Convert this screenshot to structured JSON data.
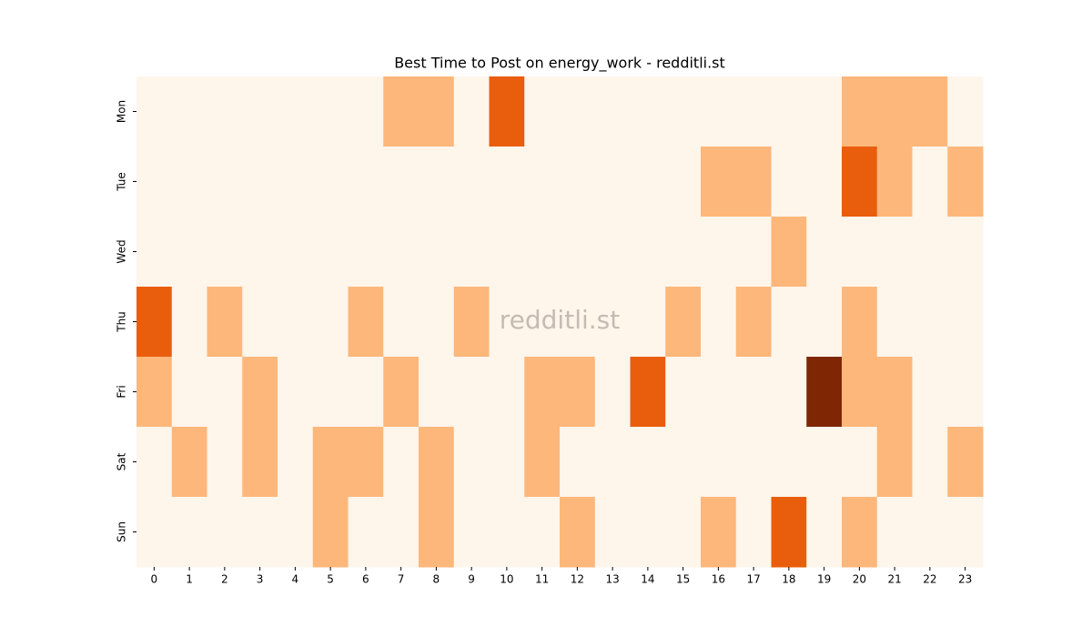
{
  "chart_data": {
    "type": "heatmap",
    "title": "Best Time to Post on energy_work - redditli.st",
    "watermark": "redditli.st",
    "x": [
      0,
      1,
      2,
      3,
      4,
      5,
      6,
      7,
      8,
      9,
      10,
      11,
      12,
      13,
      14,
      15,
      16,
      17,
      18,
      19,
      20,
      21,
      22,
      23
    ],
    "categories": [
      "Mon",
      "Tue",
      "Wed",
      "Thu",
      "Fri",
      "Sat",
      "Sun"
    ],
    "z": [
      [
        0,
        0,
        0,
        0,
        0,
        0,
        0,
        1,
        1,
        0,
        2,
        0,
        0,
        0,
        0,
        0,
        0,
        0,
        0,
        0,
        1,
        1,
        1,
        0
      ],
      [
        0,
        0,
        0,
        0,
        0,
        0,
        0,
        0,
        0,
        0,
        0,
        0,
        0,
        0,
        0,
        0,
        1,
        1,
        0,
        0,
        2,
        1,
        0,
        1
      ],
      [
        0,
        0,
        0,
        0,
        0,
        0,
        0,
        0,
        0,
        0,
        0,
        0,
        0,
        0,
        0,
        0,
        0,
        0,
        1,
        0,
        0,
        0,
        0,
        0
      ],
      [
        2,
        0,
        1,
        0,
        0,
        0,
        1,
        0,
        0,
        1,
        0,
        0,
        0,
        0,
        0,
        1,
        0,
        1,
        0,
        0,
        1,
        0,
        0,
        0
      ],
      [
        1,
        0,
        0,
        1,
        0,
        0,
        0,
        1,
        0,
        0,
        0,
        1,
        1,
        0,
        2,
        0,
        0,
        0,
        0,
        3,
        1,
        1,
        0,
        0
      ],
      [
        0,
        1,
        0,
        1,
        0,
        1,
        1,
        0,
        1,
        0,
        0,
        1,
        0,
        0,
        0,
        0,
        0,
        0,
        0,
        0,
        0,
        1,
        0,
        1
      ],
      [
        0,
        0,
        0,
        0,
        0,
        1,
        0,
        0,
        1,
        0,
        0,
        0,
        1,
        0,
        0,
        0,
        1,
        0,
        2,
        0,
        1,
        0,
        0,
        0
      ]
    ],
    "zlim": [
      0,
      3
    ],
    "colorscale": [
      "#fef5eb",
      "#fdb77a",
      "#e95e0d",
      "#7f2704"
    ]
  }
}
